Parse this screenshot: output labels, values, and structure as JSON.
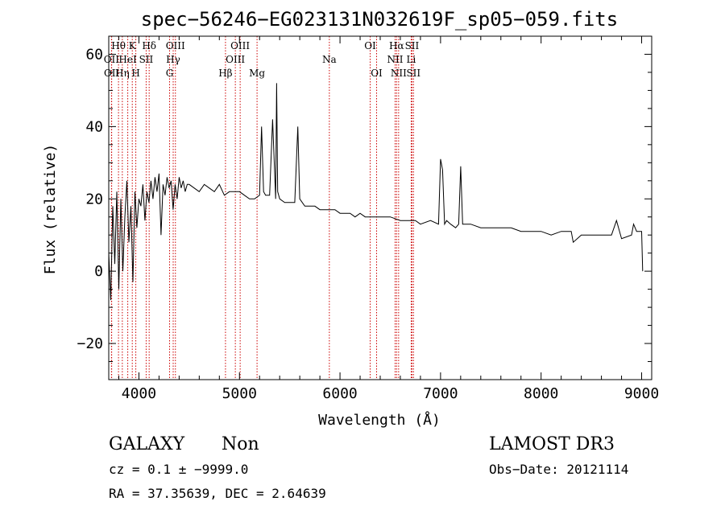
{
  "chart_data": {
    "type": "line",
    "title": "spec−56246−EG023131N032619F_sp05−059.fits",
    "xlabel": "Wavelength (Å)",
    "ylabel": "Flux (relative)",
    "xlim": [
      3700,
      9100
    ],
    "ylim": [
      -30,
      65
    ],
    "xticks": [
      4000,
      5000,
      6000,
      7000,
      8000,
      9000
    ],
    "yticks": [
      -20,
      0,
      20,
      40,
      60
    ],
    "ytick_labels": [
      "−20",
      "0",
      "20",
      "40",
      "60"
    ],
    "grid": false,
    "line_color": "#000000",
    "marker_color": "#cc0000",
    "spectral_lines": [
      {
        "name": "OII",
        "x": 3727,
        "row": 2
      },
      {
        "name": "OII",
        "x": 3729,
        "row": 3
      },
      {
        "name": "Hθ",
        "x": 3797,
        "row": 1
      },
      {
        "name": "Hη",
        "x": 3835,
        "row": 3
      },
      {
        "name": "HeI",
        "x": 3889,
        "row": 2
      },
      {
        "name": "K",
        "x": 3934,
        "row": 1
      },
      {
        "name": "SII",
        "x": 4072,
        "row": 2
      },
      {
        "name": "H",
        "x": 3969,
        "row": 3
      },
      {
        "name": "Hδ",
        "x": 4102,
        "row": 1
      },
      {
        "name": "OIII",
        "x": 4363,
        "row": 1
      },
      {
        "name": "Hγ",
        "x": 4341,
        "row": 2
      },
      {
        "name": "G",
        "x": 4305,
        "row": 3
      },
      {
        "name": "Hβ",
        "x": 4861,
        "row": 3
      },
      {
        "name": "OIII",
        "x": 4959,
        "row": 2
      },
      {
        "name": "OIII",
        "x": 5007,
        "row": 1
      },
      {
        "name": "Mg",
        "x": 5175,
        "row": 3
      },
      {
        "name": "Na",
        "x": 5894,
        "row": 2
      },
      {
        "name": "OI",
        "x": 6300,
        "row": 1
      },
      {
        "name": "OI",
        "x": 6364,
        "row": 3
      },
      {
        "name": "NII",
        "x": 6548,
        "row": 2
      },
      {
        "name": "Hα",
        "x": 6563,
        "row": 1
      },
      {
        "name": "NII",
        "x": 6583,
        "row": 3
      },
      {
        "name": "Li",
        "x": 6708,
        "row": 2
      },
      {
        "name": "SII",
        "x": 6716,
        "row": 1
      },
      {
        "name": "SII",
        "x": 6731,
        "row": 3
      }
    ],
    "series": [
      {
        "x": [
          3700,
          3720,
          3740,
          3760,
          3780,
          3800,
          3820,
          3840,
          3860,
          3880,
          3900,
          3920,
          3940,
          3960,
          3980,
          4000,
          4020,
          4040,
          4060,
          4080,
          4100,
          4120,
          4140,
          4160,
          4180,
          4200,
          4220,
          4240,
          4260,
          4280,
          4300,
          4320,
          4340,
          4360,
          4380,
          4400,
          4420,
          4440,
          4460,
          4480,
          4500,
          4550,
          4600,
          4650,
          4700,
          4750,
          4800,
          4850,
          4900,
          4950,
          5000,
          5050,
          5100,
          5150,
          5200,
          5220,
          5240,
          5260,
          5300,
          5330,
          5360,
          5370,
          5380,
          5400,
          5450,
          5500,
          5550,
          5580,
          5600,
          5650,
          5700,
          5750,
          5800,
          5850,
          5900,
          5950,
          6000,
          6050,
          6100,
          6150,
          6200,
          6250,
          6300,
          6350,
          6400,
          6500,
          6600,
          6700,
          6750,
          6800,
          6900,
          6980,
          7000,
          7020,
          7040,
          7060,
          7100,
          7150,
          7180,
          7200,
          7220,
          7260,
          7300,
          7400,
          7500,
          7600,
          7700,
          7800,
          7900,
          8000,
          8100,
          8200,
          8300,
          8320,
          8400,
          8500,
          8600,
          8700,
          8750,
          8800,
          8900,
          8920,
          8950,
          9000,
          9010
        ],
        "y": [
          5,
          -8,
          18,
          2,
          22,
          -5,
          20,
          0,
          15,
          25,
          8,
          18,
          -3,
          22,
          12,
          20,
          18,
          24,
          14,
          22,
          19,
          25,
          20,
          26,
          22,
          27,
          10,
          24,
          21,
          26,
          23,
          25,
          17,
          24,
          20,
          26,
          23,
          25,
          22,
          24,
          24,
          23,
          22,
          24,
          23,
          22,
          24,
          21,
          22,
          22,
          22,
          21,
          20,
          20,
          21,
          40,
          22,
          21,
          21,
          42,
          20,
          52,
          22,
          20,
          19,
          19,
          19,
          40,
          20,
          18,
          18,
          18,
          17,
          17,
          17,
          17,
          16,
          16,
          16,
          15,
          16,
          15,
          15,
          15,
          15,
          15,
          14,
          14,
          14,
          13,
          14,
          13,
          31,
          28,
          13,
          14,
          13,
          12,
          13,
          29,
          13,
          13,
          13,
          12,
          12,
          12,
          12,
          11,
          11,
          11,
          10,
          11,
          11,
          8,
          10,
          10,
          10,
          10,
          14,
          9,
          10,
          13,
          11,
          11,
          0
        ]
      }
    ]
  },
  "footer": {
    "class_label": "GALAXY",
    "subclass_label": "Non",
    "survey_label": "LAMOST DR3",
    "cz_text": "cz = 0.1 ± −9999.0",
    "obs_date_text": "Obs−Date: 20121114",
    "radec_text": "RA =  37.35639, DEC =   2.64639"
  }
}
